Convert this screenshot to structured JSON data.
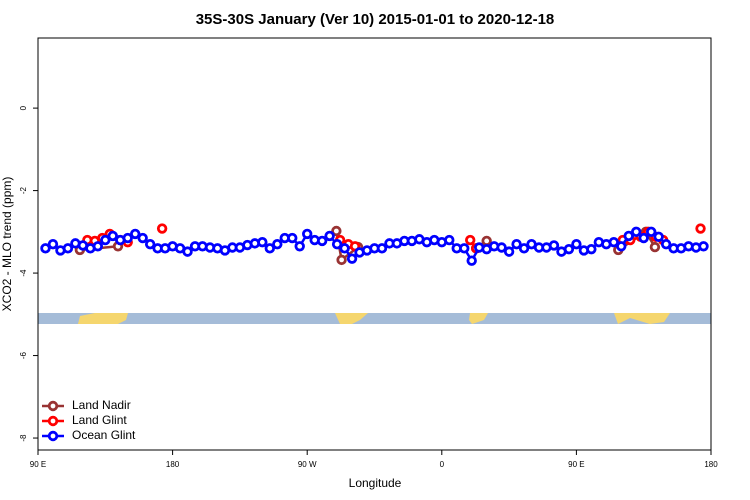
{
  "chart_data": {
    "type": "line",
    "title": "35S-30S January (Ver 10)   2015-01-01 to 2020-12-18",
    "x_label": "Longitude",
    "y_label": "XCO2 - MLO trend (ppm)",
    "xlim": [
      90,
      540
    ],
    "ylim": [
      -8.29,
      1.7
    ],
    "xticks": [
      {
        "value": 90,
        "label": "90 E"
      },
      180,
      {
        "value": 270,
        "label": "90 W"
      },
      {
        "value": 360,
        "label": "0"
      },
      {
        "value": 450,
        "label": "90 E"
      },
      {
        "value": 540,
        "label": "180"
      }
    ],
    "yticks": [
      0,
      -2,
      -4,
      -6,
      -8
    ],
    "legend": "bottom-left",
    "series": [
      {
        "name": "Land Nadir",
        "color": "#993333",
        "x": [
          118,
          143.5,
          null,
          289.5,
          293,
          304,
          null,
          383,
          390,
          null,
          478,
          496.5,
          502.5
        ],
        "values": [
          -3.44,
          -3.35,
          null,
          -2.98,
          -3.68,
          -3.37,
          null,
          -3.4,
          -3.22,
          null,
          -3.44,
          -3.0,
          -3.37
        ]
      },
      {
        "name": "Land Glint",
        "color": "#ff0000",
        "x": [
          123,
          128,
          133,
          138,
          145,
          150,
          null,
          173,
          null,
          292,
          297.5,
          302,
          null,
          379,
          383,
          null,
          481,
          486,
          493,
          498,
          503,
          508,
          null,
          533
        ],
        "values": [
          -3.2,
          -3.22,
          -3.15,
          -3.05,
          -3.2,
          -3.25,
          null,
          -2.92,
          null,
          -3.2,
          -3.3,
          -3.35,
          null,
          -3.2,
          -3.4,
          null,
          -3.2,
          -3.2,
          -3.12,
          -3.0,
          -3.12,
          -3.2,
          null,
          -2.92
        ]
      },
      {
        "name": "Ocean Glint",
        "color": "#0000ff",
        "x": [
          95,
          100,
          105,
          110,
          115,
          120,
          125,
          130,
          135,
          140,
          145,
          150,
          155,
          160,
          165,
          170,
          175,
          180,
          185,
          190,
          195,
          200,
          205,
          210,
          215,
          220,
          225,
          230,
          235,
          240,
          245,
          250,
          255,
          260,
          265,
          270,
          275,
          280,
          285,
          290,
          295,
          300,
          305,
          310,
          315,
          320,
          325,
          330,
          335,
          340,
          345,
          350,
          355,
          360,
          365,
          370,
          375,
          380,
          385,
          390,
          395,
          400,
          405,
          410,
          415,
          420,
          425,
          430,
          435,
          440,
          445,
          450,
          455,
          460,
          465,
          470,
          475,
          480,
          485,
          490,
          495,
          500,
          505,
          510,
          515,
          520,
          525,
          530,
          535
        ],
        "values": [
          -3.4,
          -3.3,
          -3.45,
          -3.4,
          -3.28,
          -3.33,
          -3.4,
          -3.35,
          -3.2,
          -3.1,
          -3.2,
          -3.15,
          -3.05,
          -3.15,
          -3.3,
          -3.4,
          -3.4,
          -3.35,
          -3.4,
          -3.48,
          -3.35,
          -3.35,
          -3.38,
          -3.4,
          -3.45,
          -3.38,
          -3.38,
          -3.32,
          -3.28,
          -3.25,
          -3.4,
          -3.3,
          -3.15,
          -3.15,
          -3.35,
          -3.05,
          -3.2,
          -3.22,
          -3.1,
          -3.3,
          -3.4,
          -3.65,
          -3.5,
          -3.45,
          -3.4,
          -3.4,
          -3.28,
          -3.28,
          -3.22,
          -3.22,
          -3.18,
          -3.25,
          -3.2,
          -3.25,
          -3.2,
          -3.4,
          -3.4,
          -3.7,
          -3.38,
          -3.42,
          -3.35,
          -3.38,
          -3.48,
          -3.3,
          -3.4,
          -3.3,
          -3.38,
          -3.38,
          -3.33,
          -3.48,
          -3.42,
          -3.3,
          -3.45,
          -3.42,
          -3.25,
          -3.3,
          -3.25,
          -3.35,
          -3.1,
          -3.0,
          -3.15,
          -3.0,
          -3.12,
          -3.3,
          -3.4,
          -3.4,
          -3.35,
          -3.38,
          -3.35
        ]
      }
    ]
  }
}
